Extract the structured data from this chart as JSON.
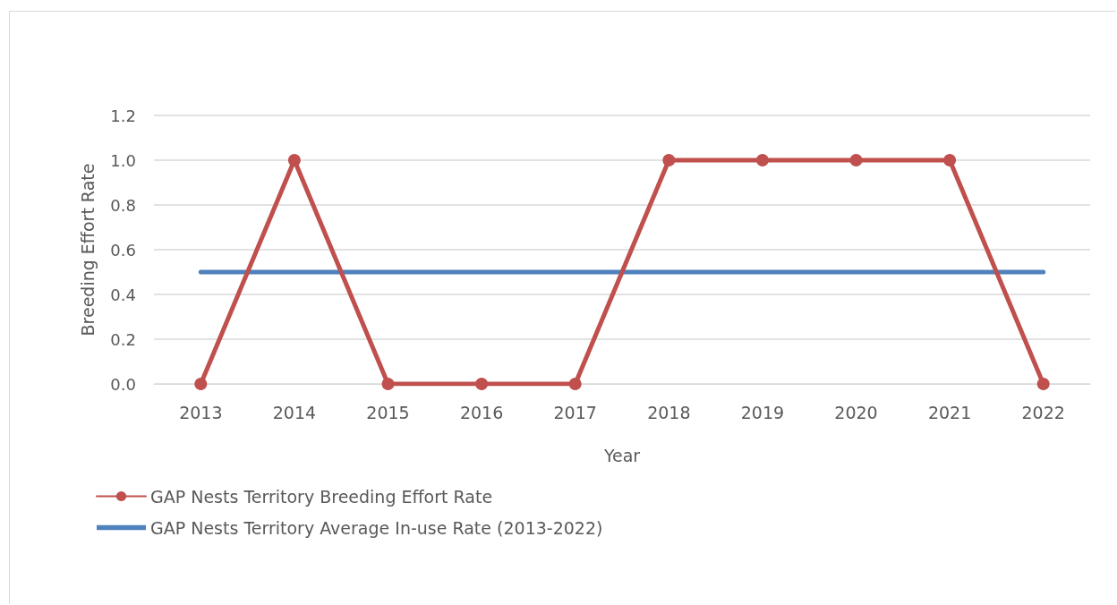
{
  "chart_data": {
    "type": "line",
    "xlabel": "Year",
    "ylabel": "Breeding Effort Rate",
    "categories": [
      "2013",
      "2014",
      "2015",
      "2016",
      "2017",
      "2018",
      "2019",
      "2020",
      "2021",
      "2022"
    ],
    "series": [
      {
        "name": "GAP Nests Territory Breeding Effort Rate",
        "color": "#c0504d",
        "marker": "circle",
        "values": [
          0,
          1,
          0,
          0,
          0,
          1,
          1,
          1,
          1,
          0
        ]
      },
      {
        "name": "GAP Nests Territory Average In-use Rate (2013-2022)",
        "color": "#4f81bd",
        "marker": "none",
        "values": [
          0.5,
          0.5,
          0.5,
          0.5,
          0.5,
          0.5,
          0.5,
          0.5,
          0.5,
          0.5
        ]
      }
    ],
    "ylim": [
      0,
      1.2
    ],
    "yticks": [
      {
        "value": 0,
        "label": "0.0"
      },
      0.2,
      0.4,
      0.6,
      0.8,
      {
        "value": 1,
        "label": "1.0"
      },
      1.2
    ],
    "grid": "y",
    "legend": "bottom left",
    "line_style": "solid"
  }
}
